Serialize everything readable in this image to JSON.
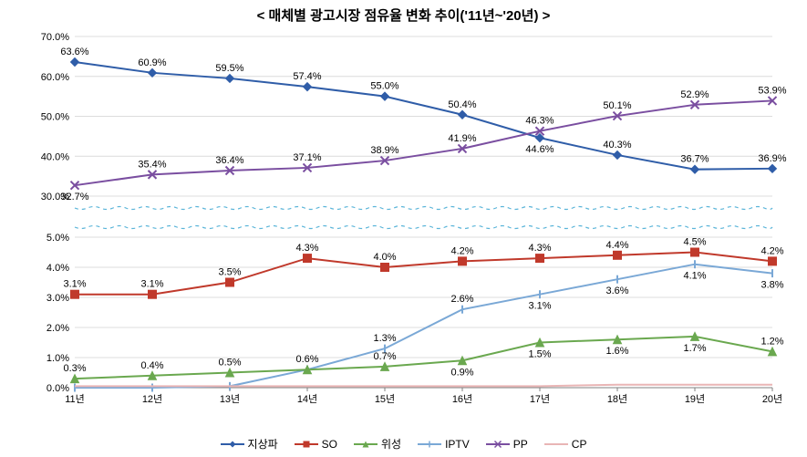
{
  "chart": {
    "type": "line",
    "title": "< 매체별 광고시장 점유율 변화 추이('11년~'20년) >",
    "title_fontsize": 15,
    "background_color": "#ffffff",
    "grid_color": "#dcdcdc",
    "axis_color": "#808080",
    "tick_font_size": 11,
    "label_font_size": 11,
    "categories": [
      "11년",
      "12년",
      "13년",
      "14년",
      "15년",
      "16년",
      "17년",
      "18년",
      "19년",
      "20년"
    ],
    "upper_panel": {
      "ylim": [
        30,
        70
      ],
      "ytick_step": 10,
      "ticks": [
        "30.0%",
        "40.0%",
        "50.0%",
        "60.0%",
        "70.0%"
      ]
    },
    "lower_panel": {
      "ylim": [
        0,
        5
      ],
      "ytick_step": 1,
      "ticks": [
        "0.0%",
        "1.0%",
        "2.0%",
        "3.0%",
        "4.0%",
        "5.0%"
      ]
    },
    "break_color": "#5bb5d9",
    "break_dash": "4 4",
    "series": [
      {
        "name": "지상파",
        "panel": "upper",
        "color": "#2f5da8",
        "marker": "diamond",
        "marker_fill": "#2f5da8",
        "line_width": 2,
        "values": [
          63.6,
          60.9,
          59.5,
          57.4,
          55.0,
          50.4,
          44.6,
          40.3,
          36.7,
          36.9
        ],
        "labels": [
          "63.6%",
          "60.9%",
          "59.5%",
          "57.4%",
          "55.0%",
          "50.4%",
          "44.6%",
          "40.3%",
          "36.7%",
          "36.9%"
        ],
        "label_pos": [
          "above",
          "above",
          "above",
          "above",
          "above",
          "above",
          "below",
          "above",
          "above",
          "above"
        ]
      },
      {
        "name": "PP",
        "panel": "upper",
        "color": "#7a4ea0",
        "marker": "x",
        "marker_fill": "#7a4ea0",
        "line_width": 2,
        "values": [
          32.7,
          35.4,
          36.4,
          37.1,
          38.9,
          41.9,
          46.3,
          50.1,
          52.9,
          53.9
        ],
        "labels": [
          "32.7%",
          "35.4%",
          "36.4%",
          "37.1%",
          "38.9%",
          "41.9%",
          "46.3%",
          "50.1%",
          "52.9%",
          "53.9%"
        ],
        "label_pos": [
          "below",
          "above",
          "above",
          "above",
          "above",
          "above",
          "above",
          "above",
          "above",
          "above"
        ]
      },
      {
        "name": "SO",
        "panel": "lower",
        "color": "#c0392b",
        "marker": "square",
        "marker_fill": "#c0392b",
        "line_width": 2,
        "values": [
          3.1,
          3.1,
          3.5,
          4.3,
          4.0,
          4.2,
          4.3,
          4.4,
          4.5,
          4.2
        ],
        "labels": [
          "3.1%",
          "3.1%",
          "3.5%",
          "4.3%",
          "4.0%",
          "4.2%",
          "4.3%",
          "4.4%",
          "4.5%",
          "4.2%"
        ],
        "label_pos": [
          "above",
          "above",
          "above",
          "above",
          "above",
          "above",
          "above",
          "above",
          "above",
          "above"
        ]
      },
      {
        "name": "IPTV",
        "panel": "lower",
        "color": "#7aa8d6",
        "marker": "vline",
        "marker_fill": "#7aa8d6",
        "line_width": 2,
        "values": [
          0.0,
          0.0,
          0.05,
          0.6,
          1.3,
          2.6,
          3.1,
          3.6,
          4.1,
          3.8
        ],
        "labels": [
          "",
          "",
          "",
          "",
          "1.3%",
          "2.6%",
          "3.1%",
          "3.6%",
          "4.1%",
          "3.8%"
        ],
        "label_pos": [
          "above",
          "above",
          "above",
          "above",
          "above",
          "above",
          "below",
          "below",
          "below",
          "below"
        ]
      },
      {
        "name": "위성",
        "panel": "lower",
        "color": "#6aa84f",
        "marker": "triangle",
        "marker_fill": "#6aa84f",
        "line_width": 2,
        "values": [
          0.3,
          0.4,
          0.5,
          0.6,
          0.7,
          0.9,
          1.5,
          1.6,
          1.7,
          1.2
        ],
        "labels": [
          "0.3%",
          "0.4%",
          "0.5%",
          "0.6%",
          "0.7%",
          "0.9%",
          "1.5%",
          "1.6%",
          "1.7%",
          "1.2%"
        ],
        "label_pos": [
          "above",
          "above",
          "above",
          "above",
          "above",
          "below",
          "below",
          "below",
          "below",
          "above"
        ]
      },
      {
        "name": "CP",
        "panel": "lower",
        "color": "#e9b5b5",
        "marker": "none",
        "marker_fill": "#e9b5b5",
        "line_width": 2,
        "values": [
          0.05,
          0.05,
          0.05,
          0.05,
          0.05,
          0.05,
          0.05,
          0.1,
          0.1,
          0.1
        ],
        "labels": [
          "",
          "",
          "",
          "",
          "",
          "",
          "",
          "",
          "",
          ""
        ],
        "label_pos": [
          "above",
          "above",
          "above",
          "above",
          "above",
          "above",
          "above",
          "above",
          "above",
          "above"
        ]
      }
    ],
    "legend_order": [
      "지상파",
      "SO",
      "위성",
      "IPTV",
      "PP",
      "CP"
    ]
  }
}
